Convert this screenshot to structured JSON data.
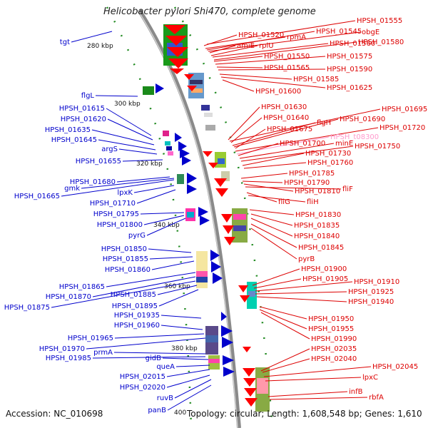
{
  "header": {
    "title": "Helicobacter pylori Shi470, complete genome"
  },
  "footer": {
    "accession": "Accession: NC_010698",
    "summary": "Topology: circular; Length: 1,608,548 bp; Genes: 1,610"
  },
  "colors": {
    "forward_label": "#0000cc",
    "reverse_label": "#dd0000",
    "rna_label": "#ff99cc",
    "backbone": "#8a8a8a",
    "tick": "#228b22"
  },
  "scale_ticks": [
    "280 kbp",
    "300 kbp",
    "320 kbp",
    "340 kbp",
    "360 kbp",
    "380 kbp",
    "400"
  ],
  "left_labels": [
    "tgt",
    "flgL",
    "HPSH_01615",
    "HPSH_01620",
    "HPSH_01635",
    "HPSH_01645",
    "argS",
    "HPSH_01655",
    "HPSH_01680",
    "gmk",
    "HPSH_01665",
    "lpxK",
    "HPSH_01710",
    "HPSH_01795",
    "HPSH_01800",
    "pyrG",
    "HPSH_01850",
    "HPSH_01855",
    "HPSH_01860",
    "HPSH_01865",
    "HPSH_01870",
    "HPSH_01875",
    "HPSH_01885",
    "HPSH_01895",
    "HPSH_01935",
    "HPSH_01960",
    "HPSH_01965",
    "HPSH_01970",
    "prmA",
    "HPSH_01985",
    "gidB",
    "queA",
    "HPSH_02015",
    "HPSH_02020",
    "ruvB",
    "panB"
  ],
  "right_labels": [
    "HPSH_01555",
    "HPSH_01520",
    "rpmA",
    "HPSH_01545",
    "obgE",
    "amiE",
    "rplU",
    "HPSH_01560",
    "HPSH_01580",
    "HPSH_01550",
    "HPSH_01575",
    "HPSH_01565",
    "HPSH_01590",
    "HPSH_01585",
    "HPSH_01625",
    "HPSH_01600",
    "HPSH_01630",
    "HPSH_01695",
    "HPSH_01640",
    "flgH",
    "HPSH_01690",
    "HPSH_01675",
    "HPSH_01720",
    "HPSH_t08300",
    "HPSH_01700",
    "minE",
    "HPSH_01750",
    "HPSH_01730",
    "HPSH_01760",
    "HPSH_01785",
    "HPSH_01790",
    "HPSH_01810",
    "fliF",
    "fliG",
    "fliH",
    "HPSH_01830",
    "HPSH_01835",
    "HPSH_01840",
    "HPSH_01845",
    "pyrB",
    "HPSH_01900",
    "HPSH_01905",
    "HPSH_01910",
    "HPSH_01925",
    "HPSH_01940",
    "HPSH_01950",
    "HPSH_01955",
    "HPSH_01990",
    "HPSH_02035",
    "HPSH_02040",
    "HPSH_02045",
    "lpxC",
    "infB",
    "rbfA"
  ],
  "rna_labels": [
    "HPSH_t08300"
  ]
}
